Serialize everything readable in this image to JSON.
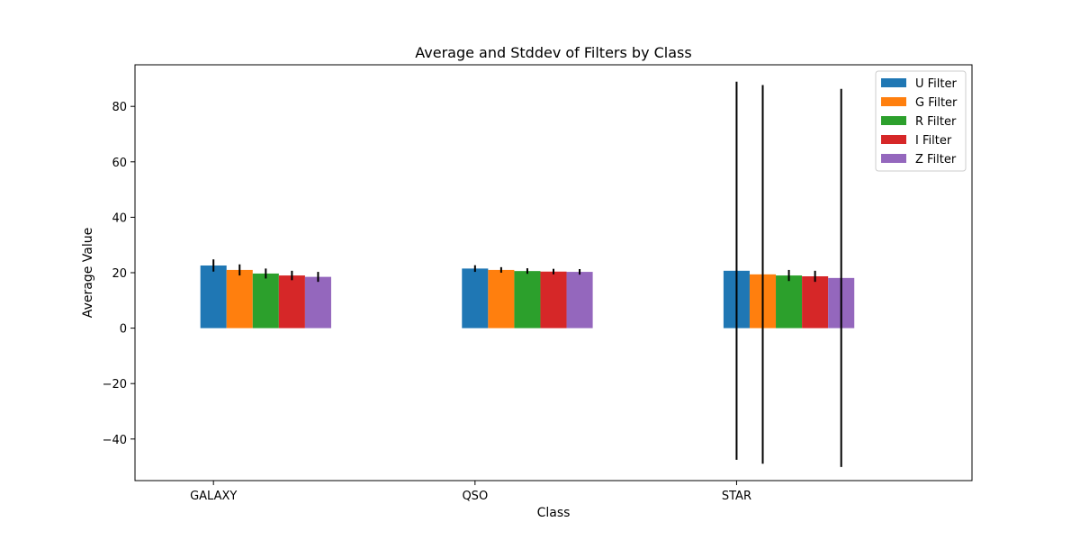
{
  "chart_data": {
    "type": "bar",
    "title": "Average and Stddev of Filters by Class",
    "xlabel": "Class",
    "ylabel": "Average Value",
    "categories": [
      "GALAXY",
      "QSO",
      "STAR"
    ],
    "ylim": [
      -55,
      95
    ],
    "yticks": [
      -40,
      -20,
      0,
      20,
      40,
      60,
      80
    ],
    "legend_position": "top-right",
    "grid": false,
    "series": [
      {
        "name": "U Filter",
        "color": "#1f77b4",
        "values": [
          22.6,
          21.5,
          20.7
        ],
        "errors": [
          2.2,
          1.2,
          68.2
        ]
      },
      {
        "name": "G Filter",
        "color": "#ff7f0e",
        "values": [
          21.0,
          21.0,
          19.4
        ],
        "errors": [
          2.0,
          1.0,
          68.3
        ]
      },
      {
        "name": "R Filter",
        "color": "#2ca02c",
        "values": [
          19.7,
          20.6,
          19.0
        ],
        "errors": [
          1.8,
          1.0,
          2.0
        ]
      },
      {
        "name": "I Filter",
        "color": "#d62728",
        "values": [
          19.0,
          20.4,
          18.7
        ],
        "errors": [
          1.7,
          1.0,
          2.0
        ]
      },
      {
        "name": "Z Filter",
        "color": "#9467bd",
        "values": [
          18.5,
          20.3,
          18.1
        ],
        "errors": [
          1.8,
          1.0,
          68.2
        ]
      }
    ]
  }
}
